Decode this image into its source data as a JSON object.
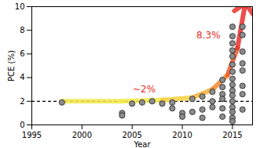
{
  "chart_data": {
    "type": "scatter",
    "x_label": "Year",
    "y_label": "PCE (%)",
    "x": [
      1998,
      2004,
      2004,
      2005,
      2006,
      2007,
      2008,
      2009,
      2009,
      2010,
      2010,
      2011,
      2011,
      2012,
      2012,
      2012,
      2013,
      2013,
      2013,
      2014,
      2014,
      2014,
      2014,
      2014,
      2014,
      2015,
      2015,
      2015,
      2015,
      2015,
      2015,
      2015,
      2015,
      2015,
      2015,
      2015,
      2015,
      2015,
      2015,
      2015,
      2015,
      2016,
      2016,
      2016,
      2016,
      2016,
      2016,
      2016,
      2016
    ],
    "values": [
      1.9,
      1.0,
      0.8,
      1.8,
      1.9,
      2.0,
      1.8,
      1.9,
      1.4,
      1.0,
      0.7,
      2.2,
      1.1,
      2.4,
      1.3,
      0.6,
      2.8,
      2.0,
      1.5,
      3.8,
      3.2,
      2.6,
      2.2,
      1.4,
      0.7,
      8.3,
      7.5,
      6.9,
      6.3,
      5.8,
      5.1,
      4.5,
      3.9,
      3.4,
      2.9,
      2.5,
      2.0,
      1.5,
      1.1,
      0.6,
      0.3,
      8.3,
      7.6,
      6.2,
      5.2,
      4.6,
      3.3,
      2.6,
      1.3
    ],
    "color": "#8c8c8c",
    "marker": "circle",
    "xlim": [
      1995,
      2017
    ],
    "xticks": [
      1995,
      2000,
      2005,
      2010,
      2015
    ],
    "ylim": [
      0,
      10
    ],
    "yticks": [
      0,
      2,
      4,
      6,
      8,
      10
    ],
    "reference_line": {
      "y": 2,
      "line_style": "dashed",
      "color": "#000000"
    },
    "trend": {
      "x": [
        1998,
        2004,
        2008,
        2011,
        2013,
        2014.5,
        2015.5,
        2016.2
      ],
      "values": [
        2.0,
        2.0,
        2.1,
        2.3,
        3.0,
        4.2,
        6.5,
        9.9
      ],
      "colors": [
        "#f3e84a",
        "#f3e84a",
        "#f5d040",
        "#f5b038",
        "#f28a30",
        "#ee5a2c",
        "#e8302a",
        "#e8302a"
      ]
    },
    "annotations": [
      {
        "text": "8.3%",
        "color": "#e8302a"
      },
      {
        "text": "~2%",
        "color": "#e8302a"
      }
    ]
  }
}
